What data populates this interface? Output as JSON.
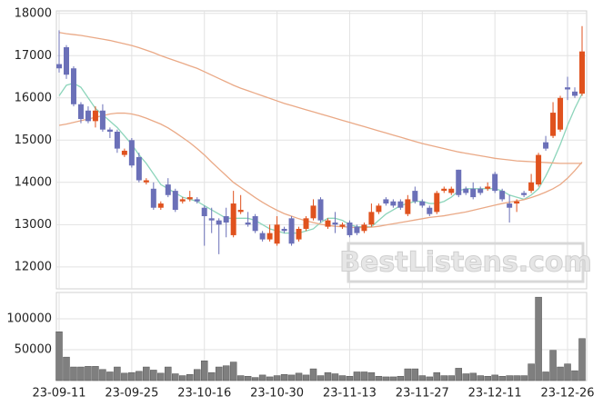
{
  "chart_data": {
    "type": "candlestick",
    "categories": [
      "23-09-11",
      null,
      null,
      null,
      null,
      null,
      null,
      null,
      null,
      null,
      "23-09-25",
      null,
      null,
      null,
      null,
      null,
      null,
      null,
      null,
      null,
      "23-10-16",
      null,
      null,
      null,
      null,
      null,
      null,
      null,
      null,
      null,
      "23-10-30",
      null,
      null,
      null,
      null,
      null,
      null,
      null,
      null,
      null,
      "23-11-13",
      null,
      null,
      null,
      null,
      null,
      null,
      null,
      null,
      null,
      "23-11-27",
      null,
      null,
      null,
      null,
      null,
      null,
      null,
      null,
      null,
      "23-12-11",
      null,
      null,
      null,
      null,
      null,
      null,
      null,
      null,
      null,
      "23-12-26",
      null,
      null
    ],
    "open": [
      16800,
      17200,
      16700,
      15850,
      15700,
      15450,
      15700,
      15250,
      15200,
      14650,
      15000,
      14600,
      14000,
      13850,
      13400,
      13950,
      13800,
      13550,
      13600,
      13600,
      13400,
      13150,
      13100,
      13200,
      12750,
      13300,
      13050,
      13200,
      12800,
      12650,
      12550,
      12900,
      13150,
      12650,
      12900,
      13150,
      13600,
      12950,
      13050,
      12950,
      13050,
      12950,
      12850,
      13000,
      13300,
      13600,
      13550,
      13550,
      13250,
      13800,
      13550,
      13400,
      13300,
      13800,
      13750,
      14300,
      13850,
      13850,
      13850,
      13850,
      14200,
      13800,
      13500,
      13500,
      13750,
      13800,
      13950,
      14950,
      15100,
      15250,
      16250,
      16150,
      16100
    ],
    "high": [
      17600,
      17250,
      16750,
      15900,
      15800,
      15800,
      15850,
      15300,
      15250,
      14800,
      15050,
      14700,
      14100,
      14000,
      13550,
      14100,
      13850,
      13650,
      13800,
      13650,
      13450,
      13400,
      13150,
      13400,
      13800,
      13700,
      13300,
      13250,
      12850,
      13000,
      13200,
      12950,
      13200,
      12950,
      13200,
      13600,
      13650,
      13150,
      13300,
      13050,
      13100,
      13000,
      13050,
      13500,
      13500,
      13650,
      13600,
      13600,
      13700,
      13900,
      13600,
      13450,
      13800,
      13900,
      13900,
      14300,
      13900,
      14000,
      13900,
      14000,
      14250,
      13850,
      13700,
      13600,
      13800,
      14200,
      14700,
      15100,
      15900,
      16050,
      16500,
      16250,
      17700
    ],
    "low": [
      16600,
      16450,
      15800,
      15400,
      15400,
      15300,
      15200,
      15050,
      14700,
      14600,
      14350,
      14000,
      13950,
      13350,
      13350,
      13650,
      13300,
      13500,
      13550,
      13500,
      12500,
      12800,
      12300,
      12700,
      12700,
      13250,
      12950,
      12800,
      12600,
      12600,
      12500,
      12800,
      12500,
      12600,
      12850,
      13100,
      13050,
      12900,
      12800,
      12900,
      12700,
      12750,
      12800,
      12950,
      13250,
      13450,
      13400,
      13350,
      13200,
      13500,
      13400,
      13200,
      13250,
      13750,
      13700,
      13650,
      13700,
      13600,
      13700,
      13800,
      13750,
      13550,
      13050,
      13300,
      13650,
      13750,
      13900,
      14750,
      15050,
      15200,
      15950,
      16000,
      16050
    ],
    "close": [
      16700,
      16550,
      15850,
      15500,
      15450,
      15700,
      15250,
      15200,
      14800,
      14750,
      14400,
      14050,
      14050,
      13400,
      13500,
      13700,
      13350,
      13600,
      13650,
      13550,
      13200,
      13100,
      13000,
      13050,
      13500,
      13350,
      13000,
      12850,
      12650,
      12800,
      13000,
      12850,
      12550,
      12900,
      13150,
      13450,
      13100,
      13100,
      13000,
      13000,
      12750,
      12800,
      13000,
      13300,
      13450,
      13500,
      13450,
      13400,
      13600,
      13550,
      13450,
      13250,
      13750,
      13850,
      13850,
      13700,
      13750,
      13650,
      13750,
      13900,
      13800,
      13600,
      13400,
      13550,
      13700,
      14000,
      14650,
      14800,
      15650,
      16000,
      16200,
      16050,
      17100
    ],
    "volume": [
      79000,
      38000,
      22000,
      22000,
      23000,
      23000,
      18000,
      14000,
      22000,
      12000,
      13000,
      15000,
      22000,
      17000,
      12000,
      22000,
      11000,
      8000,
      10000,
      18000,
      32000,
      13000,
      22000,
      24000,
      30000,
      8000,
      7000,
      5000,
      9000,
      6000,
      8000,
      10000,
      9000,
      12000,
      9000,
      19000,
      8000,
      13000,
      11000,
      8000,
      7000,
      14000,
      14000,
      13000,
      7000,
      6000,
      6000,
      7000,
      19000,
      19000,
      8000,
      6000,
      13000,
      8000,
      8000,
      20000,
      11000,
      12000,
      8000,
      7000,
      9000,
      7000,
      8000,
      8000,
      8000,
      27000,
      135000,
      14000,
      49000,
      22000,
      27000,
      16000,
      68000
    ],
    "lines": [
      {
        "color": "#8dd5bb",
        "values": [
          16050,
          16300,
          16350,
          16250,
          16000,
          15750,
          15600,
          15450,
          15300,
          15100,
          14900,
          14650,
          14450,
          14200,
          13950,
          13850,
          13750,
          13650,
          13600,
          13550,
          13450,
          13350,
          13250,
          13150,
          13150,
          13150,
          13150,
          13100,
          13000,
          12900,
          12850,
          12800,
          12800,
          12800,
          12850,
          12900,
          13050,
          13150,
          13150,
          13100,
          13000,
          12950,
          12950,
          12950,
          13100,
          13250,
          13350,
          13450,
          13500,
          13550,
          13550,
          13500,
          13500,
          13550,
          13650,
          13800,
          13850,
          13850,
          13850,
          13850,
          13850,
          13800,
          13700,
          13650,
          13600,
          13700,
          13850,
          14150,
          14500,
          14900,
          15350,
          15750,
          16100
        ]
      },
      {
        "color": "#eaa986",
        "values": [
          15350,
          15380,
          15420,
          15460,
          15500,
          15540,
          15580,
          15620,
          15640,
          15640,
          15620,
          15580,
          15520,
          15450,
          15380,
          15290,
          15180,
          15060,
          14940,
          14800,
          14650,
          14480,
          14320,
          14160,
          14000,
          13880,
          13760,
          13640,
          13530,
          13430,
          13340,
          13260,
          13200,
          13140,
          13090,
          13050,
          13010,
          12980,
          12960,
          12950,
          12940,
          12930,
          12930,
          12940,
          12960,
          12990,
          13020,
          13050,
          13080,
          13110,
          13140,
          13170,
          13190,
          13210,
          13240,
          13270,
          13300,
          13340,
          13380,
          13420,
          13460,
          13500,
          13530,
          13560,
          13590,
          13640,
          13700,
          13770,
          13850,
          13950,
          14100,
          14280,
          14480
        ]
      },
      {
        "color": "#eaa986",
        "values": [
          17550,
          17520,
          17500,
          17480,
          17450,
          17420,
          17390,
          17360,
          17320,
          17280,
          17240,
          17190,
          17130,
          17070,
          17000,
          16940,
          16880,
          16820,
          16760,
          16700,
          16620,
          16540,
          16460,
          16380,
          16300,
          16230,
          16170,
          16110,
          16050,
          15990,
          15930,
          15870,
          15820,
          15770,
          15720,
          15670,
          15620,
          15570,
          15520,
          15470,
          15420,
          15370,
          15320,
          15270,
          15220,
          15170,
          15120,
          15070,
          15020,
          14970,
          14920,
          14880,
          14840,
          14800,
          14760,
          14720,
          14690,
          14660,
          14630,
          14600,
          14570,
          14550,
          14530,
          14510,
          14500,
          14490,
          14480,
          14470,
          14460,
          14450,
          14450,
          14450,
          14450
        ]
      }
    ],
    "up_color": "#e0521e",
    "down_color": "#6b70b8",
    "volume_color": "#7f7f7f",
    "ylim": [
      11480,
      18060
    ],
    "yticks": [
      12000,
      13000,
      14000,
      15000,
      16000,
      17000,
      18000
    ],
    "volume_ylim": [
      0,
      142600
    ],
    "volume_yticks": [
      50000,
      100000
    ],
    "grid": true,
    "watermark": "BestListens.com"
  }
}
